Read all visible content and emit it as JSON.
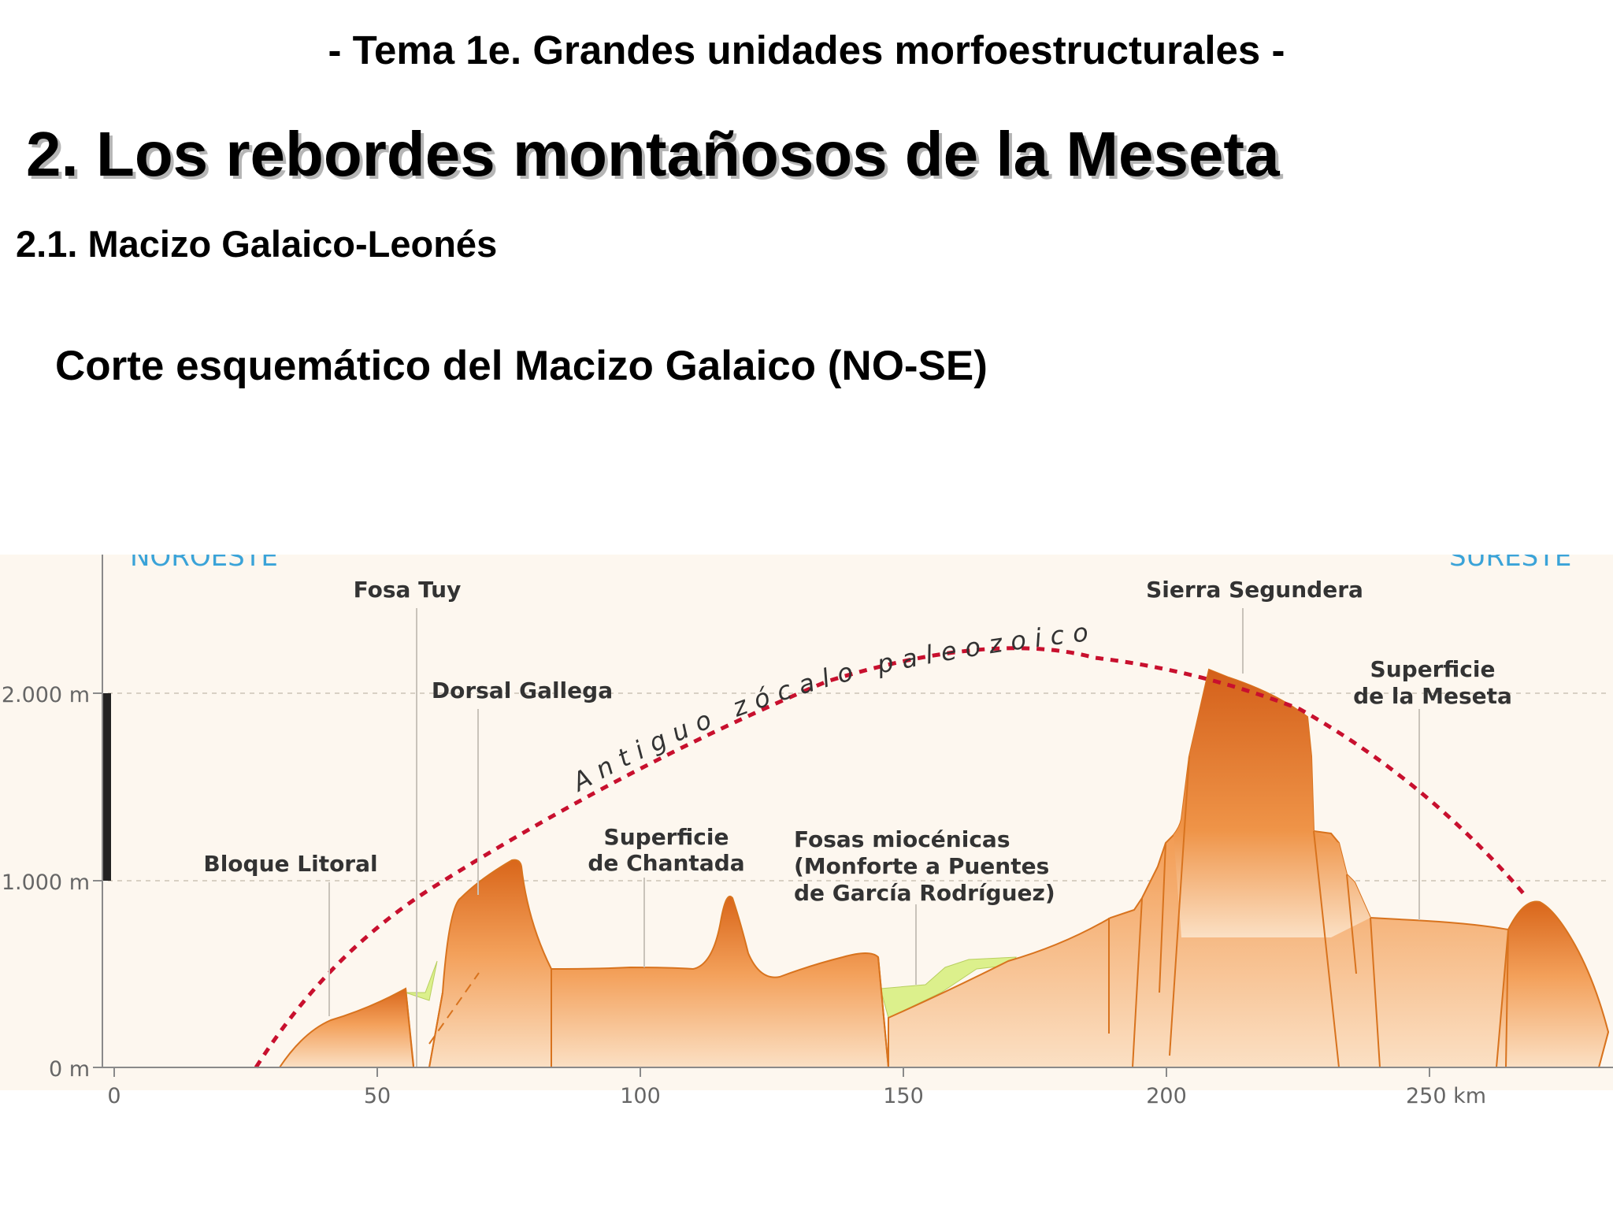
{
  "header": {
    "topic": "- Tema 1e. Grandes unidades morfoestructurales -",
    "section": "2. Los rebordes montañosos de la Meseta",
    "subsection": "2.1. Macizo Galaico-Leonés",
    "caption": "Corte esquemático del Macizo Galaico (NO-SE)"
  },
  "diagram": {
    "direction_left": "NOROESTE",
    "direction_right": "SURESTE",
    "y_axis": {
      "ticks": [
        {
          "value": 0,
          "label": "0 m"
        },
        {
          "value": 1000,
          "label": "1.000 m"
        },
        {
          "value": 2000,
          "label": "2.000 m"
        }
      ]
    },
    "x_axis": {
      "ticks": [
        {
          "value": 0,
          "label": "0"
        },
        {
          "value": 50,
          "label": "50"
        },
        {
          "value": 100,
          "label": "100"
        },
        {
          "value": 150,
          "label": "150"
        },
        {
          "value": 200,
          "label": "200"
        },
        {
          "value": 250,
          "label": "250 km"
        }
      ]
    },
    "labels": {
      "fosa_tuy": "Fosa Tuy",
      "dorsal_gallega": "Dorsal Gallega",
      "bloque_litoral": "Bloque Litoral",
      "chantada_1": "Superficie",
      "chantada_2": "de Chantada",
      "fosas_1": "Fosas miocénicas",
      "fosas_2": "(Monforte a Puentes",
      "fosas_3": "de García Rodríguez)",
      "segundera": "Sierra Segundera",
      "meseta_1": "Superficie",
      "meseta_2": "de la Meseta",
      "zocalo": "Antiguo zócalo paleozoico"
    },
    "colors": {
      "terrain_light": "#fbe0c4",
      "terrain_mid": "#f3a05a",
      "terrain_dark": "#d9661a",
      "terrain_edge": "#d8731e",
      "sediment": "#dcf08c",
      "paleo_line": "#c8102e",
      "background": "#fdf7ef",
      "direction_text": "#3aa3d8"
    }
  }
}
